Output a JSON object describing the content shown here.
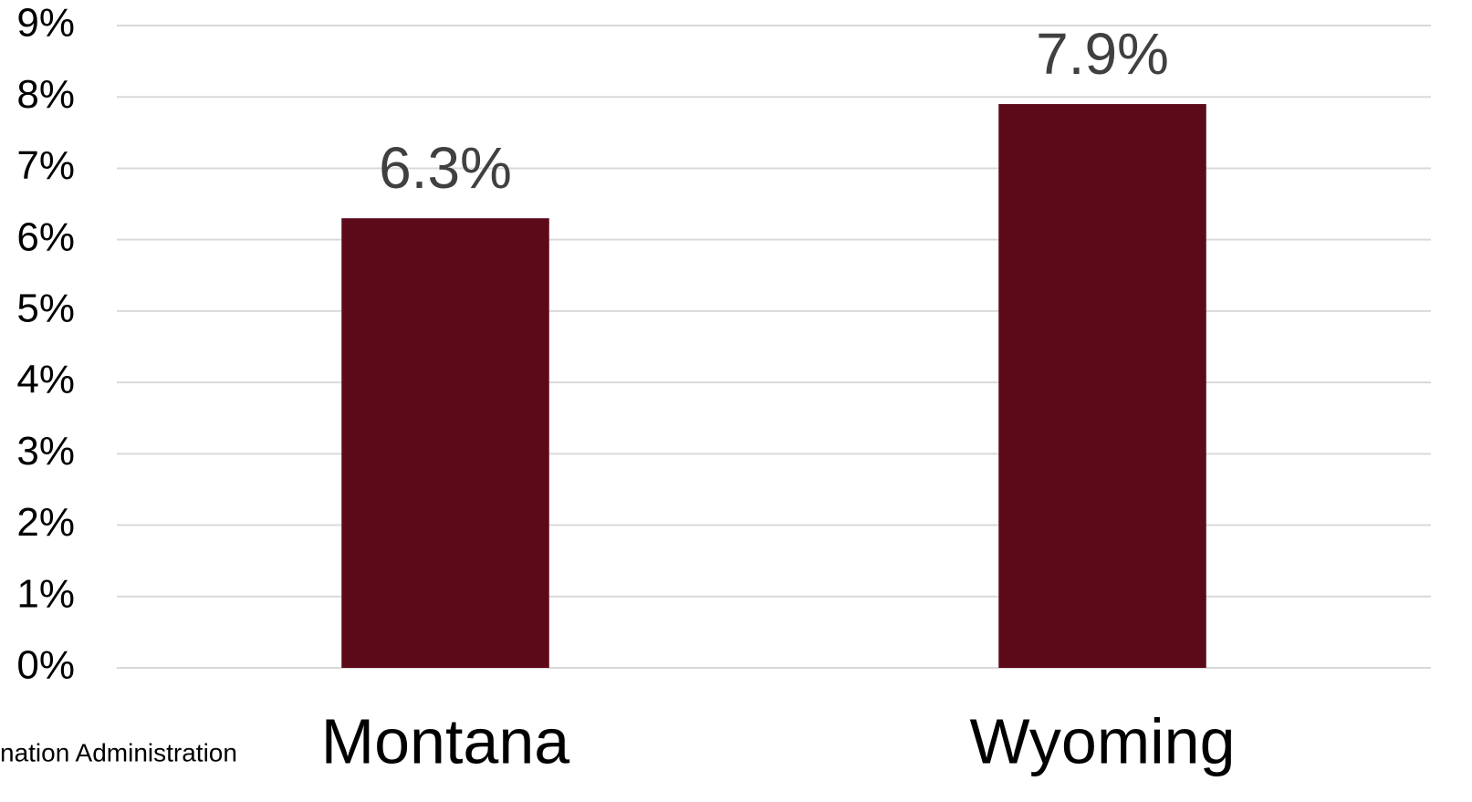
{
  "chart_data": {
    "type": "bar",
    "categories": [
      "Montana",
      "Wyoming"
    ],
    "values": [
      6.3,
      7.9
    ],
    "value_labels": [
      "6.3%",
      "7.9%"
    ],
    "color": "#5c0a1a",
    "ylim": [
      0,
      9
    ],
    "yticks": [
      {
        "value": 0,
        "label": "0%"
      },
      {
        "value": 1,
        "label": "1%"
      },
      {
        "value": 2,
        "label": "2%"
      },
      {
        "value": 3,
        "label": "3%"
      },
      {
        "value": 4,
        "label": "4%"
      },
      {
        "value": 5,
        "label": "5%"
      },
      {
        "value": 6,
        "label": "6%"
      },
      {
        "value": 7,
        "label": "7%"
      },
      {
        "value": 8,
        "label": "8%"
      },
      {
        "value": 9,
        "label": "9%"
      }
    ],
    "grid": true,
    "annotation": "nation Administration"
  }
}
